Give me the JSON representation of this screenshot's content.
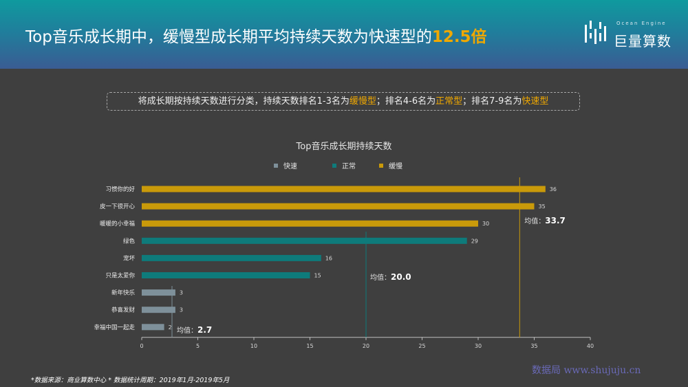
{
  "header": {
    "title_main": "Top音乐成长期中，缓慢型成长期平均持续天数为快速型的",
    "title_highlight": "12.5倍",
    "logo_text": "巨量算数",
    "logo_small": "Ocean Engine"
  },
  "note": {
    "part1": "将成长期按持续天数进行分类，持续天数排名1-3名为",
    "hl1": "缓慢型",
    "part2": "；排名4-6名为",
    "hl2": "正常型",
    "part3": "；排名7-9名为",
    "hl3": "快速型"
  },
  "chart_data": {
    "type": "bar",
    "orientation": "horizontal",
    "title": "Top音乐成长期持续天数",
    "legend": [
      {
        "name": "快速",
        "color": "#7e909a"
      },
      {
        "name": "正常",
        "color": "#0e7b7b"
      },
      {
        "name": "缓慢",
        "color": "#c99a0a"
      }
    ],
    "categories": [
      "习惯你的好",
      "皮一下很开心",
      "暖暖的小幸福",
      "绿色",
      "宠坏",
      "只是太爱你",
      "新年快乐",
      "恭喜发财",
      "幸福中国一起走"
    ],
    "values": [
      36,
      35,
      30,
      29,
      16,
      15,
      3,
      3,
      2
    ],
    "groups": [
      "缓慢",
      "缓慢",
      "缓慢",
      "正常",
      "正常",
      "正常",
      "快速",
      "快速",
      "快速"
    ],
    "xlim": [
      0,
      40
    ],
    "xticks": [
      0,
      5,
      10,
      15,
      20,
      25,
      30,
      35,
      40
    ],
    "averages": [
      {
        "group": "缓慢",
        "label": "均值：",
        "value": 33.7,
        "value_text": "33.7"
      },
      {
        "group": "正常",
        "label": "均值：",
        "value": 20.0,
        "value_text": "20.0"
      },
      {
        "group": "快速",
        "label": "均值：",
        "value": 2.7,
        "value_text": "2.7"
      }
    ]
  },
  "footer": {
    "source": "*数据来源：商业算数中心 * 数据统计周期：2019年1月-2019年5月",
    "watermark": "数据局  www.shujuju.cn"
  }
}
